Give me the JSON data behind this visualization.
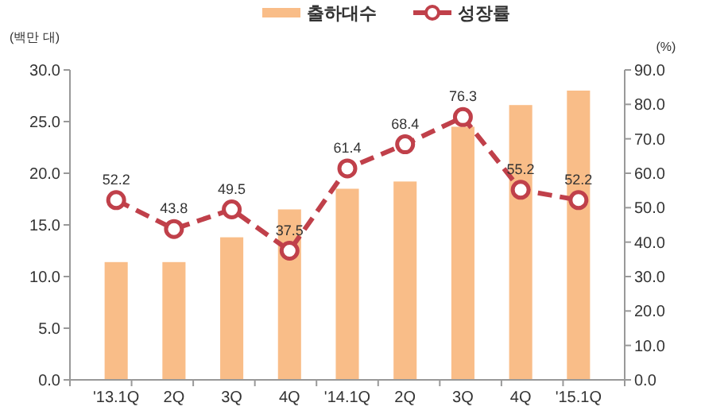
{
  "chart_data": {
    "type": "bar",
    "ylabel": "(백만 대)",
    "y2label": "(%)",
    "categories": [
      "'13.1Q",
      "2Q",
      "3Q",
      "4Q",
      "'14.1Q",
      "2Q",
      "3Q",
      "4Q",
      "'15.1Q"
    ],
    "series": [
      {
        "name": "출하대수",
        "color": "#f9bd88",
        "values": [
          11.4,
          11.4,
          13.8,
          16.5,
          18.5,
          19.2,
          24.5,
          26.6,
          28.0
        ]
      },
      {
        "name": "성장률",
        "type": "line",
        "axis": "y2",
        "color": "#c0404a",
        "marker": "circle",
        "line_style": "dashed",
        "data_labels": true,
        "values": [
          52.2,
          43.8,
          49.5,
          37.5,
          61.4,
          68.4,
          76.3,
          55.2,
          52.2
        ]
      }
    ],
    "ylim": [
      0,
      30
    ],
    "yticks": [
      {
        "value": 0,
        "label": "0.0"
      },
      {
        "value": 5,
        "label": "5.0"
      },
      {
        "value": 10,
        "label": "10.0"
      },
      {
        "value": 15,
        "label": "15.0"
      },
      {
        "value": 20,
        "label": "20.0"
      },
      {
        "value": 25,
        "label": "25.0"
      },
      {
        "value": 30,
        "label": "30.0"
      }
    ],
    "y2lim": [
      0,
      90
    ],
    "y2ticks": [
      {
        "value": 0,
        "label": "0.0"
      },
      {
        "value": 10,
        "label": "10.0"
      },
      {
        "value": 20,
        "label": "20.0"
      },
      {
        "value": 30,
        "label": "30.0"
      },
      {
        "value": 40,
        "label": "40.0"
      },
      {
        "value": 50,
        "label": "50.0"
      },
      {
        "value": 60,
        "label": "60.0"
      },
      {
        "value": 70,
        "label": "70.0"
      },
      {
        "value": 80,
        "label": "80.0"
      },
      {
        "value": 90,
        "label": "90.0"
      }
    ],
    "grid": false,
    "legend": "top"
  }
}
